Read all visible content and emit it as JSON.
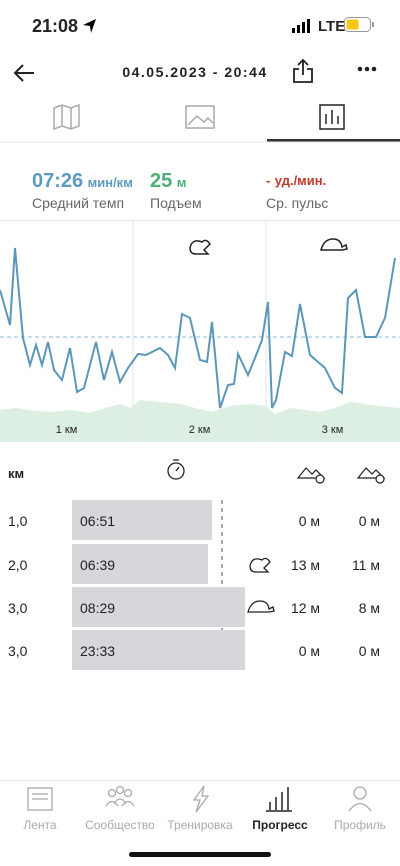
{
  "status_bar": {
    "time": "21:08",
    "network": "LTE"
  },
  "header": {
    "title": "04.05.2023 - 20:44"
  },
  "stats": [
    {
      "value": "07:26",
      "unit": "мин/км",
      "label": "Средний темп"
    },
    {
      "value": "25",
      "unit": "м",
      "label": "Подъем"
    },
    {
      "value": "-",
      "unit": "уд./мин.",
      "label": "Ср. пульс"
    }
  ],
  "chart": {
    "km_labels": [
      "1 км",
      "2 км",
      "3 км"
    ]
  },
  "table": {
    "header": "км",
    "rows": [
      {
        "km": "1,0",
        "time": "06:51",
        "up": "0 м",
        "down": "0 м"
      },
      {
        "km": "2,0",
        "time": "06:39",
        "up": "13 м",
        "down": "11 м"
      },
      {
        "km": "3,0",
        "time": "08:29",
        "up": "12 м",
        "down": "8 м"
      },
      {
        "km": "3,0",
        "time": "23:33",
        "up": "0 м",
        "down": "0 м"
      }
    ]
  },
  "nav": [
    "Лента",
    "Сообщество",
    "Тренировка",
    "Прогресс",
    "Профиль"
  ]
}
